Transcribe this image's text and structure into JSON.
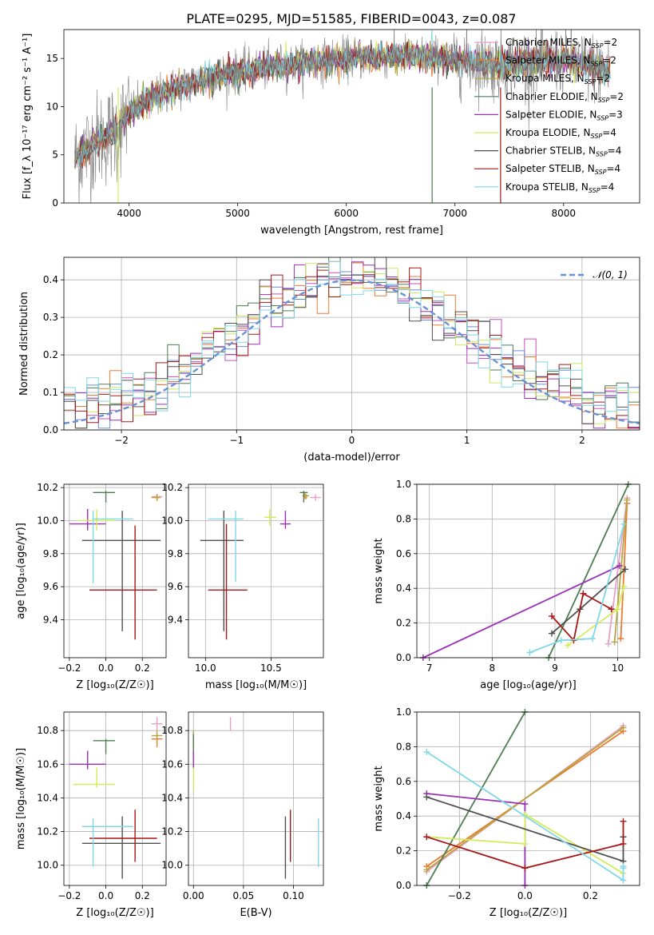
{
  "title": "PLATE=0295, MJD=51585, FIBERID=0043, z=0.087",
  "colors": {
    "Chabrier MILES": "#e8a0c8",
    "Salpeter MILES": "#ee7a30",
    "Kroupa MILES": "#b6a640",
    "Chabrier ELODIE": "#4e7e52",
    "Salpeter ELODIE": "#9a30b8",
    "Kroupa ELODIE": "#d4ec5a",
    "Chabrier STELIB": "#505050",
    "Salpeter STELIB": "#a81818",
    "Kroupa STELIB": "#80d8e6",
    "spectrum": "#808080",
    "gaussian": "#6a90d6"
  },
  "chart_data": [
    {
      "id": "spectrum",
      "type": "line",
      "xlabel": "wavelength [Angstrom, rest frame]",
      "ylabel": "Flux [f_λ 10⁻¹⁷ erg cm⁻² s⁻¹ A⁻¹]",
      "xlim": [
        3400,
        8700
      ],
      "ylim": [
        0,
        18
      ],
      "xticks": [
        4000,
        5000,
        6000,
        7000,
        8000
      ],
      "yticks": [
        0,
        5,
        10,
        15
      ],
      "legend_position": "top-right",
      "legend": [
        {
          "name": "Chabrier MILES",
          "nssp": "2"
        },
        {
          "name": "Salpeter MILES",
          "nssp": "2"
        },
        {
          "name": "Kroupa MILES",
          "nssp": "2"
        },
        {
          "name": "Chabrier ELODIE",
          "nssp": "2"
        },
        {
          "name": "Salpeter ELODIE",
          "nssp": "3"
        },
        {
          "name": "Kroupa ELODIE",
          "nssp": "4"
        },
        {
          "name": "Chabrier STELIB",
          "nssp": "4"
        },
        {
          "name": "Salpeter STELIB",
          "nssp": "4"
        },
        {
          "name": "Kroupa STELIB",
          "nssp": "4"
        }
      ],
      "continuum": {
        "x": [
          3500,
          3700,
          3900,
          4000,
          4200,
          4500,
          4800,
          5100,
          5500,
          6000,
          6500,
          7000,
          7400,
          8000,
          8400
        ],
        "y": [
          4.5,
          6.5,
          7.5,
          9.5,
          10.8,
          12.2,
          13.2,
          13.8,
          14.4,
          15.0,
          15.3,
          15.0,
          14.3,
          14.8,
          13.8
        ]
      }
    },
    {
      "id": "residuals",
      "type": "step",
      "xlabel": "(data-model)/error",
      "ylabel": "Normed distribution",
      "xlim": [
        -2.5,
        2.5
      ],
      "ylim": [
        0,
        0.46
      ],
      "xticks": [
        -2,
        -1,
        0,
        1,
        2
      ],
      "yticks": [
        0.0,
        0.1,
        0.2,
        0.3,
        0.4
      ],
      "legend_label": "𝒩(0, 1)",
      "legend_position": "top-right",
      "grid": true
    },
    {
      "id": "age-vs-Z",
      "type": "scatter",
      "xlabel": "Z [log₁₀(Z/Z☉)]",
      "ylabel": "age  [log₁₀(age/yr)]",
      "xlim": [
        -0.23,
        0.33
      ],
      "ylim": [
        9.17,
        10.22
      ],
      "xticks": [
        -0.2,
        0.0,
        0.2
      ],
      "yticks": [
        9.4,
        9.6,
        9.8,
        10.0,
        10.2
      ],
      "grid": true,
      "points": [
        {
          "s": "Chabrier MILES",
          "x": 0.28,
          "y": 10.145,
          "xl": 0.25,
          "xh": 0.31,
          "yl": 10.13,
          "yh": 10.16
        },
        {
          "s": "Salpeter MILES",
          "x": 0.28,
          "y": 10.14,
          "xl": 0.25,
          "xh": 0.3,
          "yl": 10.12,
          "yh": 10.16
        },
        {
          "s": "Kroupa MILES",
          "x": 0.28,
          "y": 10.14,
          "xl": 0.25,
          "xh": 0.3,
          "yl": 10.12,
          "yh": 10.15
        },
        {
          "s": "Chabrier ELODIE",
          "x": 0.0,
          "y": 10.17,
          "xl": -0.07,
          "xh": 0.05,
          "yl": 10.11,
          "yh": 10.18
        },
        {
          "s": "Salpeter ELODIE",
          "x": -0.1,
          "y": 9.98,
          "xl": -0.2,
          "xh": 0.0,
          "yl": 9.94,
          "yh": 10.07
        },
        {
          "s": "Kroupa ELODIE",
          "x": -0.05,
          "y": 10.0,
          "xl": -0.15,
          "xh": 0.05,
          "yl": 9.94,
          "yh": 10.07
        },
        {
          "s": "Chabrier STELIB",
          "x": 0.09,
          "y": 9.88,
          "xl": -0.13,
          "xh": 0.3,
          "yl": 9.33,
          "yh": 10.06
        },
        {
          "s": "Salpeter STELIB",
          "x": 0.16,
          "y": 9.58,
          "xl": -0.09,
          "xh": 0.28,
          "yl": 9.28,
          "yh": 9.97
        },
        {
          "s": "Kroupa STELIB",
          "x": -0.07,
          "y": 10.01,
          "xl": -0.07,
          "xh": 0.15,
          "yl": 9.62,
          "yh": 10.06
        }
      ]
    },
    {
      "id": "age-vs-mass",
      "type": "scatter",
      "xlabel": "mass [log₁₀(M/M☉)]",
      "ylabel": "",
      "xlim": [
        9.87,
        10.9
      ],
      "ylim": [
        9.17,
        10.22
      ],
      "xticks": [
        10.0,
        10.5
      ],
      "yticks": [
        9.4,
        9.6,
        9.8,
        10.0,
        10.2
      ],
      "grid": true,
      "points": [
        {
          "s": "Chabrier MILES",
          "x": 10.84,
          "y": 10.14,
          "xl": 10.8,
          "xh": 10.88,
          "yl": 10.12,
          "yh": 10.16
        },
        {
          "s": "Salpeter MILES",
          "x": 10.76,
          "y": 10.15,
          "xl": 10.74,
          "xh": 10.78,
          "yl": 10.13,
          "yh": 10.17
        },
        {
          "s": "Kroupa MILES",
          "x": 10.77,
          "y": 10.15,
          "xl": 10.75,
          "xh": 10.79,
          "yl": 10.13,
          "yh": 10.16
        },
        {
          "s": "Chabrier ELODIE",
          "x": 10.75,
          "y": 10.17,
          "xl": 10.72,
          "xh": 10.78,
          "yl": 10.11,
          "yh": 10.18
        },
        {
          "s": "Salpeter ELODIE",
          "x": 10.61,
          "y": 9.98,
          "xl": 10.57,
          "xh": 10.65,
          "yl": 9.95,
          "yh": 10.06
        },
        {
          "s": "Kroupa ELODIE",
          "x": 10.49,
          "y": 10.02,
          "xl": 10.45,
          "xh": 10.54,
          "yl": 9.97,
          "yh": 10.07
        },
        {
          "s": "Chabrier STELIB",
          "x": 10.14,
          "y": 9.88,
          "xl": 9.96,
          "xh": 10.29,
          "yl": 9.33,
          "yh": 10.06
        },
        {
          "s": "Salpeter STELIB",
          "x": 10.16,
          "y": 9.58,
          "xl": 10.02,
          "xh": 10.32,
          "yl": 9.28,
          "yh": 9.98
        },
        {
          "s": "Kroupa STELIB",
          "x": 10.23,
          "y": 10.01,
          "xl": 10.02,
          "xh": 10.29,
          "yl": 9.63,
          "yh": 10.06
        }
      ]
    },
    {
      "id": "weight-vs-age",
      "type": "line",
      "xlabel": "age  [log₁₀(age/yr)]",
      "ylabel": "mass weight",
      "xlim": [
        6.8,
        10.35
      ],
      "ylim": [
        0,
        1.0
      ],
      "xticks": [
        7,
        8,
        9,
        10
      ],
      "yticks": [
        0.0,
        0.2,
        0.4,
        0.6,
        0.8,
        1.0
      ],
      "grid": true,
      "series": [
        {
          "s": "Chabrier MILES",
          "x": [
            9.85,
            10.15
          ],
          "y": [
            0.08,
            0.92
          ]
        },
        {
          "s": "Salpeter MILES",
          "x": [
            10.05,
            10.15
          ],
          "y": [
            0.11,
            0.89
          ]
        },
        {
          "s": "Kroupa MILES",
          "x": [
            9.95,
            10.15
          ],
          "y": [
            0.09,
            0.91
          ]
        },
        {
          "s": "Chabrier ELODIE",
          "x": [
            8.9,
            10.17
          ],
          "y": [
            0.0,
            1.0
          ]
        },
        {
          "s": "Salpeter ELODIE",
          "x": [
            6.9,
            10.03
          ],
          "y": [
            0.0,
            0.53
          ]
        },
        {
          "s": "Kroupa ELODIE",
          "x": [
            9.2,
            10.0,
            10.1
          ],
          "y": [
            0.07,
            0.28,
            0.41
          ]
        },
        {
          "s": "Chabrier STELIB",
          "x": [
            8.95,
            9.4,
            10.12
          ],
          "y": [
            0.14,
            0.28,
            0.51
          ]
        },
        {
          "s": "Salpeter STELIB",
          "x": [
            8.95,
            9.3,
            9.45,
            9.9
          ],
          "y": [
            0.24,
            0.1,
            0.37,
            0.28
          ]
        },
        {
          "s": "Kroupa STELIB",
          "x": [
            8.6,
            9.1,
            9.6,
            10.1
          ],
          "y": [
            0.03,
            0.1,
            0.11,
            0.77
          ]
        }
      ]
    },
    {
      "id": "mass-vs-Z",
      "type": "scatter",
      "xlabel": "Z [log₁₀(Z/Z☉)]",
      "ylabel": "mass [log₁₀(M/M☉)]",
      "xlim": [
        -0.23,
        0.33
      ],
      "ylim": [
        9.88,
        10.91
      ],
      "xticks": [
        -0.2,
        0.0,
        0.2
      ],
      "yticks": [
        10.0,
        10.2,
        10.4,
        10.6,
        10.8
      ],
      "grid": true,
      "points": [
        {
          "s": "Chabrier MILES",
          "x": 0.28,
          "y": 10.84,
          "xl": 0.25,
          "xh": 0.31,
          "yl": 10.8,
          "yh": 10.88
        },
        {
          "s": "Salpeter MILES",
          "x": 0.28,
          "y": 10.75,
          "xl": 0.25,
          "xh": 0.31,
          "yl": 10.7,
          "yh": 10.78
        },
        {
          "s": "Kroupa MILES",
          "x": 0.28,
          "y": 10.77,
          "xl": 0.25,
          "xh": 0.31,
          "yl": 10.72,
          "yh": 10.8
        },
        {
          "s": "Chabrier ELODIE",
          "x": 0.0,
          "y": 10.74,
          "xl": -0.07,
          "xh": 0.05,
          "yl": 10.66,
          "yh": 10.75
        },
        {
          "s": "Salpeter ELODIE",
          "x": -0.1,
          "y": 10.6,
          "xl": -0.2,
          "xh": 0.0,
          "yl": 10.57,
          "yh": 10.68
        },
        {
          "s": "Kroupa ELODIE",
          "x": -0.05,
          "y": 10.48,
          "xl": -0.18,
          "xh": 0.05,
          "yl": 10.46,
          "yh": 10.58
        },
        {
          "s": "Chabrier STELIB",
          "x": 0.09,
          "y": 10.13,
          "xl": -0.13,
          "xh": 0.3,
          "yl": 9.92,
          "yh": 10.29
        },
        {
          "s": "Salpeter STELIB",
          "x": 0.16,
          "y": 10.16,
          "xl": -0.09,
          "xh": 0.28,
          "yl": 10.02,
          "yh": 10.33
        },
        {
          "s": "Kroupa STELIB",
          "x": -0.07,
          "y": 10.23,
          "xl": -0.13,
          "xh": 0.15,
          "yl": 9.99,
          "yh": 10.28
        }
      ]
    },
    {
      "id": "mass-vs-EBV",
      "type": "scatter",
      "xlabel": "E(B-V)",
      "ylabel": "",
      "xlim": [
        -0.005,
        0.13
      ],
      "ylim": [
        9.88,
        10.91
      ],
      "xticks": [
        0.0,
        0.05,
        0.1
      ],
      "yticks": [
        10.0,
        10.2,
        10.4,
        10.6,
        10.8
      ],
      "grid": true,
      "points": [
        {
          "s": "Chabrier MILES",
          "x": 0.037,
          "y": 10.84,
          "xl": 0.037,
          "xh": 0.037,
          "yl": 10.8,
          "yh": 10.88
        },
        {
          "s": "Salpeter MILES",
          "x": 0.0,
          "y": 10.75,
          "xl": 0.0,
          "xh": 0.0,
          "yl": 10.7,
          "yh": 10.78
        },
        {
          "s": "Kroupa MILES",
          "x": 0.0,
          "y": 10.77,
          "xl": 0.0,
          "xh": 0.0,
          "yl": 10.72,
          "yh": 10.8
        },
        {
          "s": "Chabrier ELODIE",
          "x": 0.0,
          "y": 10.74,
          "xl": 0.0,
          "xh": 0.0,
          "yl": 10.66,
          "yh": 10.78
        },
        {
          "s": "Salpeter ELODIE",
          "x": 0.0,
          "y": 10.6,
          "xl": 0.0,
          "xh": 0.0,
          "yl": 10.57,
          "yh": 10.68
        },
        {
          "s": "Kroupa ELODIE",
          "x": 0.0,
          "y": 10.48,
          "xl": 0.0,
          "xh": 0.0,
          "yl": 10.44,
          "yh": 10.58
        },
        {
          "s": "Chabrier STELIB",
          "x": 0.092,
          "y": 10.13,
          "xl": 0.092,
          "xh": 0.092,
          "yl": 9.92,
          "yh": 10.29
        },
        {
          "s": "Salpeter STELIB",
          "x": 0.097,
          "y": 10.16,
          "xl": 0.097,
          "xh": 0.097,
          "yl": 10.02,
          "yh": 10.33
        },
        {
          "s": "Kroupa STELIB",
          "x": 0.125,
          "y": 10.2,
          "xl": 0.125,
          "xh": 0.125,
          "yl": 9.99,
          "yh": 10.28
        }
      ]
    },
    {
      "id": "weight-vs-Z",
      "type": "line",
      "xlabel": "Z [log₁₀(Z/Z☉)]",
      "ylabel": "mass weight",
      "xlim": [
        -0.33,
        0.35
      ],
      "ylim": [
        0,
        1.0
      ],
      "xticks": [
        -0.2,
        0.0,
        0.2
      ],
      "yticks": [
        0.0,
        0.2,
        0.4,
        0.6,
        0.8,
        1.0
      ],
      "grid": true,
      "series": [
        {
          "s": "Chabrier MILES",
          "x": [
            -0.3,
            0.3
          ],
          "y": [
            0.08,
            0.92
          ]
        },
        {
          "s": "Salpeter MILES",
          "x": [
            -0.3,
            0.3
          ],
          "y": [
            0.11,
            0.89
          ]
        },
        {
          "s": "Kroupa MILES",
          "x": [
            -0.3,
            0.3
          ],
          "y": [
            0.09,
            0.91
          ]
        },
        {
          "s": "Chabrier ELODIE",
          "x": [
            -0.3,
            0.0
          ],
          "y": [
            0.0,
            1.0
          ]
        },
        {
          "s": "Salpeter ELODIE",
          "x": [
            -0.3,
            0.0,
            0.0
          ],
          "y": [
            0.53,
            0.47,
            0.0
          ]
        },
        {
          "s": "Kroupa ELODIE",
          "x": [
            -0.3,
            0.0,
            0.0,
            0.3
          ],
          "y": [
            0.28,
            0.24,
            0.41,
            0.07
          ]
        },
        {
          "s": "Chabrier STELIB",
          "x": [
            -0.3,
            0.3,
            0.3
          ],
          "y": [
            0.51,
            0.14,
            0.28
          ]
        },
        {
          "s": "Salpeter STELIB",
          "x": [
            -0.3,
            0.0,
            0.3,
            0.3
          ],
          "y": [
            0.28,
            0.1,
            0.24,
            0.37
          ]
        },
        {
          "s": "Kroupa STELIB",
          "x": [
            -0.3,
            0.3,
            0.3,
            0.3
          ],
          "y": [
            0.77,
            0.03,
            0.1,
            0.11
          ]
        }
      ]
    }
  ]
}
